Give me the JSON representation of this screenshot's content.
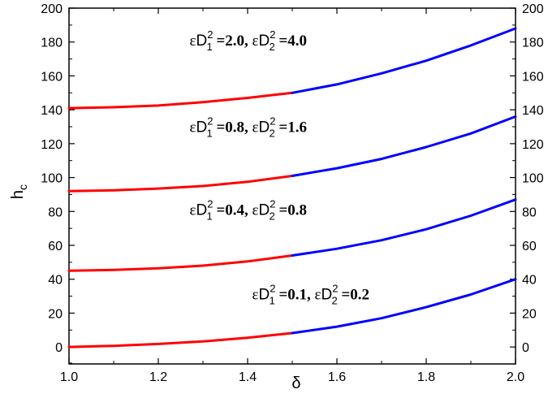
{
  "chart_data": {
    "type": "line",
    "xlabel": "δ",
    "ylabel": "h",
    "ylabel_subscript": "c",
    "xlim": [
      1.0,
      2.0
    ],
    "ylim": [
      -10,
      200
    ],
    "x_ticks": [
      "1.0",
      "1.2",
      "1.4",
      "1.6",
      "1.8",
      "2.0"
    ],
    "y_ticks": [
      "0",
      "20",
      "40",
      "60",
      "80",
      "100",
      "120",
      "140",
      "160",
      "180",
      "200"
    ],
    "right_y_ticks": [
      "0",
      "20",
      "40",
      "60",
      "80",
      "100",
      "120",
      "140",
      "160",
      "180",
      "200"
    ],
    "colors": {
      "segment_low": "#ff0000",
      "segment_high": "#0000ff",
      "axis": "#000000"
    },
    "series": [
      {
        "x": [
          1.0,
          1.1,
          1.2,
          1.3,
          1.4,
          1.5,
          1.6,
          1.7,
          1.8,
          1.9,
          2.0
        ],
        "y": [
          141,
          141.5,
          142.5,
          144.5,
          147,
          150,
          155,
          161.5,
          169,
          178,
          188
        ],
        "label": {
          "eps": "ε",
          "d1": "D",
          "d1_sup": "2",
          "d1_sub": "1",
          "v1": " =2.0, ",
          "d2": "D",
          "d2_sup": "2",
          "d2_sub": "2",
          "v2": " =4.0"
        },
        "label_at": [
          1.27,
          178
        ]
      },
      {
        "x": [
          1.0,
          1.1,
          1.2,
          1.3,
          1.4,
          1.5,
          1.6,
          1.7,
          1.8,
          1.9,
          2.0
        ],
        "y": [
          92,
          92.5,
          93.5,
          95,
          97.5,
          101,
          105.5,
          111,
          118,
          126,
          136
        ],
        "label": {
          "eps": "ε",
          "d1": "D",
          "d1_sup": "2",
          "d1_sub": "1",
          "v1": " =0.8, ",
          "d2": "D",
          "d2_sup": "2",
          "d2_sub": "2",
          "v2": " =1.6"
        },
        "label_at": [
          1.27,
          127
        ]
      },
      {
        "x": [
          1.0,
          1.1,
          1.2,
          1.3,
          1.4,
          1.5,
          1.6,
          1.7,
          1.8,
          1.9,
          2.0
        ],
        "y": [
          45,
          45.5,
          46.5,
          48,
          50.5,
          54,
          58,
          63,
          69.5,
          77.5,
          87
        ],
        "label": {
          "eps": "ε",
          "d1": "D",
          "d1_sup": "2",
          "d1_sub": "1",
          "v1": " =0.4, ",
          "d2": "D",
          "d2_sup": "2",
          "d2_sub": "2",
          "v2": " =0.8"
        },
        "label_at": [
          1.27,
          78
        ]
      },
      {
        "x": [
          1.0,
          1.1,
          1.2,
          1.3,
          1.4,
          1.5,
          1.6,
          1.7,
          1.8,
          1.9,
          2.0
        ],
        "y": [
          0,
          0.7,
          1.8,
          3.3,
          5.5,
          8.2,
          12,
          17,
          23.5,
          31,
          40
        ],
        "label": {
          "eps": "ε",
          "d1": "D",
          "d1_sup": "2",
          "d1_sub": "1",
          "v1": " =0.1, ",
          "d2": "D",
          "d2_sup": "2",
          "d2_sub": "2",
          "v2": " =0.2"
        },
        "label_at": [
          1.41,
          28
        ]
      }
    ],
    "split_x": 1.5,
    "grid": false
  }
}
